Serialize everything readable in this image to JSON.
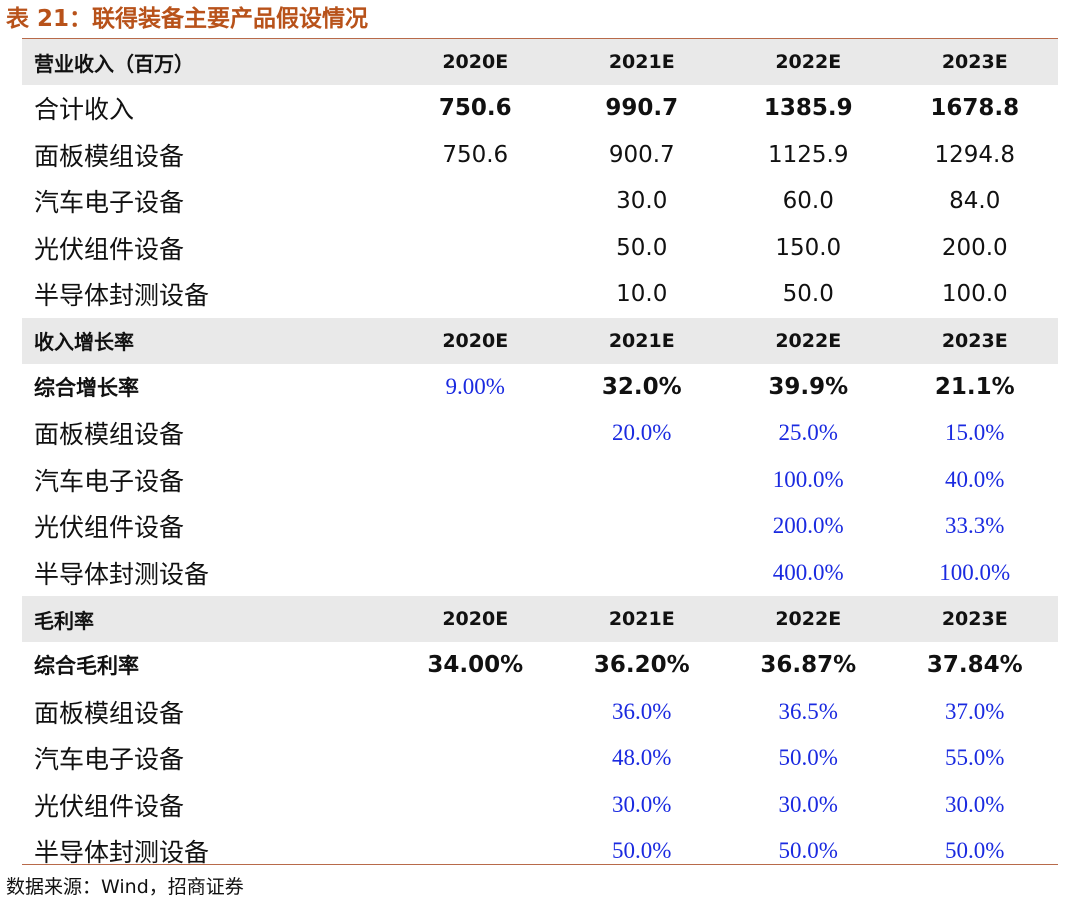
{
  "title": "表 21：联得装备主要产品假设情况",
  "source": "数据来源：Wind，招商证券",
  "colors": {
    "title": "#b8521a",
    "header_band": "#e9e9e9",
    "rule": "#b86a4a",
    "assumption_value": "#1a2ae0"
  },
  "sections": [
    {
      "header": {
        "label": "营业收入（百万）",
        "years": [
          "2020E",
          "2021E",
          "2022E",
          "2023E"
        ]
      },
      "rows": [
        {
          "label": "合计收入",
          "label_bold": false,
          "values": [
            "750.6",
            "990.7",
            "1385.9",
            "1678.8"
          ],
          "value_style": "bold"
        },
        {
          "label": "面板模组设备",
          "label_bold": false,
          "values": [
            "750.6",
            "900.7",
            "1125.9",
            "1294.8"
          ],
          "value_style": "normal"
        },
        {
          "label": "汽车电子设备",
          "label_bold": false,
          "values": [
            "",
            "30.0",
            "60.0",
            "84.0"
          ],
          "value_style": "normal"
        },
        {
          "label": "光伏组件设备",
          "label_bold": false,
          "values": [
            "",
            "50.0",
            "150.0",
            "200.0"
          ],
          "value_style": "normal"
        },
        {
          "label": "半导体封测设备",
          "label_bold": false,
          "values": [
            "",
            "10.0",
            "50.0",
            "100.0"
          ],
          "value_style": "normal"
        }
      ]
    },
    {
      "header": {
        "label": "收入增长率",
        "years": [
          "2020E",
          "2021E",
          "2022E",
          "2023E"
        ]
      },
      "rows": [
        {
          "label": "综合增长率",
          "label_bold": true,
          "values": [
            "9.00%",
            "32.0%",
            "39.9%",
            "21.1%"
          ],
          "value_style": "mixed",
          "value_styles": [
            "blue",
            "bold",
            "bold",
            "bold"
          ]
        },
        {
          "label": "面板模组设备",
          "label_bold": false,
          "values": [
            "",
            "20.0%",
            "25.0%",
            "15.0%"
          ],
          "value_style": "blue"
        },
        {
          "label": "汽车电子设备",
          "label_bold": false,
          "values": [
            "",
            "",
            "100.0%",
            "40.0%"
          ],
          "value_style": "blue"
        },
        {
          "label": "光伏组件设备",
          "label_bold": false,
          "values": [
            "",
            "",
            "200.0%",
            "33.3%"
          ],
          "value_style": "blue"
        },
        {
          "label": "半导体封测设备",
          "label_bold": false,
          "values": [
            "",
            "",
            "400.0%",
            "100.0%"
          ],
          "value_style": "blue"
        }
      ]
    },
    {
      "header": {
        "label": "毛利率",
        "years": [
          "2020E",
          "2021E",
          "2022E",
          "2023E"
        ]
      },
      "rows": [
        {
          "label": "综合毛利率",
          "label_bold": true,
          "values": [
            "34.00%",
            "36.20%",
            "36.87%",
            "37.84%"
          ],
          "value_style": "bold"
        },
        {
          "label": "面板模组设备",
          "label_bold": false,
          "values": [
            "",
            "36.0%",
            "36.5%",
            "37.0%"
          ],
          "value_style": "blue"
        },
        {
          "label": "汽车电子设备",
          "label_bold": false,
          "values": [
            "",
            "48.0%",
            "50.0%",
            "55.0%"
          ],
          "value_style": "blue"
        },
        {
          "label": "光伏组件设备",
          "label_bold": false,
          "values": [
            "",
            "30.0%",
            "30.0%",
            "30.0%"
          ],
          "value_style": "blue"
        },
        {
          "label": "半导体封测设备",
          "label_bold": false,
          "values": [
            "",
            "50.0%",
            "50.0%",
            "50.0%"
          ],
          "value_style": "blue"
        }
      ]
    }
  ]
}
